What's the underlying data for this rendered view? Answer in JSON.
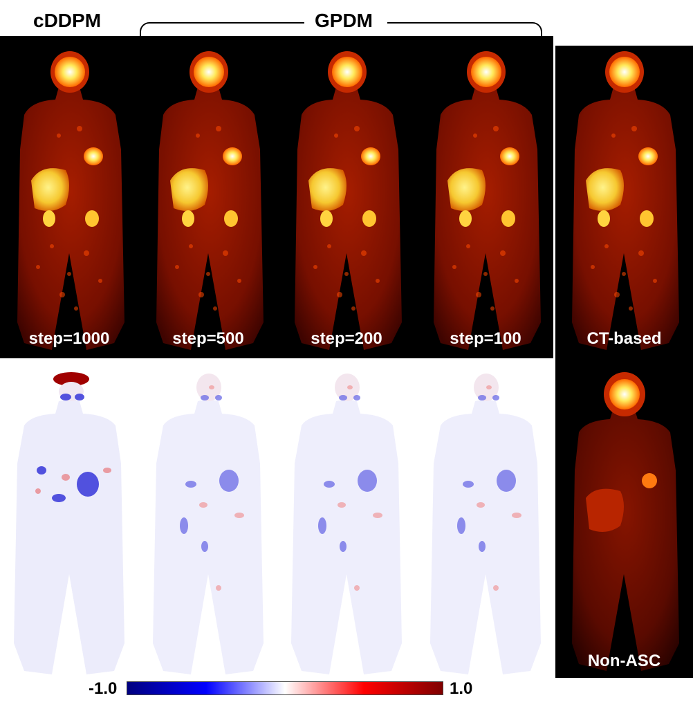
{
  "headers": {
    "left": "cDDPM",
    "center": "GPDM"
  },
  "panels": [
    {
      "label": "step=1000"
    },
    {
      "label": "step=500"
    },
    {
      "label": "step=200"
    },
    {
      "label": "step=100"
    },
    {
      "label": "CT-based"
    }
  ],
  "nonasc_label": "Non-ASC",
  "colorbar": {
    "min_label": "-1.0",
    "max_label": "1.0",
    "colors": [
      "#00007f",
      "#0000ff",
      "#ffffff",
      "#ff0000",
      "#7f0000"
    ]
  }
}
